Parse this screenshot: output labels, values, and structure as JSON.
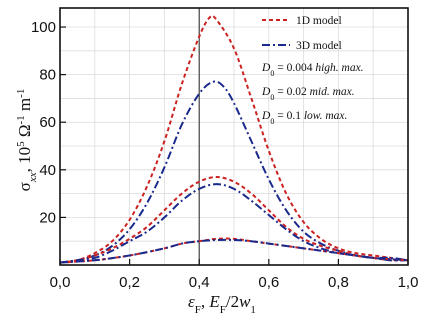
{
  "chart_data": {
    "type": "line",
    "xlabel": "ε_F, E_F/2w_1",
    "ylabel": "σ_xx, 10^5 Ω^-1 m^-1",
    "xlim": [
      0.0,
      1.0
    ],
    "ylim": [
      0,
      108
    ],
    "x_ticks": [
      "0,0",
      "0,2",
      "0,4",
      "0,6",
      "0,8",
      "1,0"
    ],
    "y_ticks": [
      "20",
      "40",
      "60",
      "80",
      "100"
    ],
    "y_tick_values": [
      20,
      40,
      60,
      80,
      100
    ],
    "grid": true,
    "reference_line_x": 0.4,
    "legend_position": "top-right",
    "legend": [
      {
        "label": "1D model",
        "style": "dashed",
        "color": "#cc2222"
      },
      {
        "label": "3D model",
        "style": "dash-dot",
        "color": "#1a2a8c"
      }
    ],
    "annotations": [
      {
        "d0": "0.004",
        "text": "high. max."
      },
      {
        "d0": "0.02",
        "text": "mid. max."
      },
      {
        "d0": "0.1",
        "text": "low. max."
      }
    ],
    "series": [
      {
        "name": "1D model",
        "group": "high",
        "color": "#cc2222",
        "style": "dashed",
        "x": [
          0.0,
          0.05,
          0.1,
          0.15,
          0.2,
          0.25,
          0.3,
          0.35,
          0.4,
          0.43,
          0.45,
          0.5,
          0.55,
          0.6,
          0.65,
          0.7,
          0.75,
          0.8,
          0.85,
          0.9,
          0.95,
          1.0
        ],
        "values": [
          1,
          2,
          5,
          10,
          19,
          33,
          52,
          76,
          96,
          104,
          103,
          91,
          70,
          48,
          30,
          18,
          11,
          7,
          5,
          4,
          3,
          2
        ]
      },
      {
        "name": "3D model",
        "group": "high",
        "color": "#1a2a8c",
        "style": "dash-dot",
        "x": [
          0.0,
          0.05,
          0.1,
          0.15,
          0.2,
          0.25,
          0.3,
          0.35,
          0.4,
          0.44,
          0.47,
          0.5,
          0.55,
          0.6,
          0.65,
          0.7,
          0.75,
          0.8,
          0.85,
          0.9,
          0.95,
          1.0
        ],
        "values": [
          1,
          2,
          4,
          8,
          15,
          26,
          41,
          59,
          72,
          77,
          75,
          68,
          52,
          36,
          23,
          14,
          9,
          6,
          4,
          3,
          3,
          2
        ]
      },
      {
        "name": "1D model",
        "group": "mid",
        "color": "#cc2222",
        "style": "dashed",
        "x": [
          0.0,
          0.05,
          0.1,
          0.15,
          0.2,
          0.25,
          0.3,
          0.35,
          0.4,
          0.45,
          0.5,
          0.55,
          0.6,
          0.65,
          0.7,
          0.75,
          0.8,
          0.85,
          0.9,
          0.95,
          1.0
        ],
        "values": [
          1,
          2,
          4,
          7,
          11,
          16,
          23,
          30,
          35,
          37,
          35,
          30,
          23,
          16,
          11,
          8,
          6,
          4,
          3,
          2,
          2
        ]
      },
      {
        "name": "3D model",
        "group": "mid",
        "color": "#1a2a8c",
        "style": "dash-dot",
        "x": [
          0.0,
          0.05,
          0.1,
          0.15,
          0.2,
          0.25,
          0.3,
          0.35,
          0.4,
          0.45,
          0.5,
          0.55,
          0.6,
          0.65,
          0.7,
          0.75,
          0.8,
          0.85,
          0.9,
          0.95,
          1.0
        ],
        "values": [
          1,
          2,
          3,
          6,
          10,
          14,
          20,
          27,
          32,
          34,
          32,
          27,
          21,
          15,
          10,
          7,
          5,
          4,
          3,
          2,
          2
        ]
      },
      {
        "name": "1D model",
        "group": "low",
        "color": "#cc2222",
        "style": "dashed",
        "x": [
          0.0,
          0.1,
          0.2,
          0.3,
          0.35,
          0.4,
          0.45,
          0.5,
          0.55,
          0.6,
          0.7,
          0.8,
          0.9,
          1.0
        ],
        "values": [
          1,
          2,
          4,
          7,
          9,
          10,
          11,
          11,
          10,
          9,
          7,
          5,
          3,
          2
        ]
      },
      {
        "name": "3D model",
        "group": "low",
        "color": "#1a2a8c",
        "style": "dash-dot",
        "x": [
          0.0,
          0.1,
          0.2,
          0.3,
          0.35,
          0.4,
          0.45,
          0.5,
          0.55,
          0.6,
          0.7,
          0.8,
          0.9,
          1.0
        ],
        "values": [
          1,
          2,
          4,
          7,
          9,
          10,
          10.5,
          10.5,
          10,
          9,
          7,
          5,
          3,
          2
        ]
      }
    ]
  }
}
